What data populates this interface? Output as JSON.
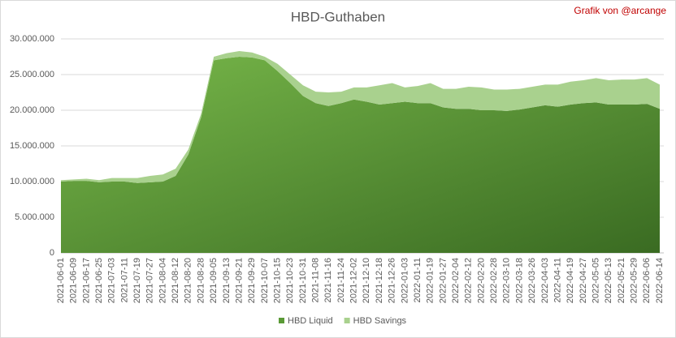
{
  "chart_data": {
    "type": "stacked-area",
    "title": "HBD-Guthaben",
    "annotation": "Grafik von @arcange",
    "categories": [
      "2021-06-01",
      "2021-06-09",
      "2021-06-17",
      "2021-06-25",
      "2021-07-03",
      "2021-07-11",
      "2021-07-19",
      "2021-07-27",
      "2021-08-04",
      "2021-08-12",
      "2021-08-20",
      "2021-08-28",
      "2021-09-05",
      "2021-09-13",
      "2021-09-21",
      "2021-09-29",
      "2021-10-07",
      "2021-10-15",
      "2021-10-23",
      "2021-10-31",
      "2021-11-08",
      "2021-11-16",
      "2021-11-24",
      "2021-12-02",
      "2021-12-10",
      "2021-12-18",
      "2021-12-26",
      "2022-01-03",
      "2022-01-11",
      "2022-01-19",
      "2022-01-27",
      "2022-02-04",
      "2022-02-12",
      "2022-02-20",
      "2022-02-28",
      "2022-03-10",
      "2022-03-18",
      "2022-03-26",
      "2022-04-03",
      "2022-04-11",
      "2022-04-19",
      "2022-04-27",
      "2022-05-05",
      "2022-05-13",
      "2022-05-21",
      "2022-05-29",
      "2022-06-06",
      "2022-06-14"
    ],
    "series": [
      {
        "name": "HBD Liquid",
        "color": "#5a9a36",
        "values": [
          10000000,
          10100000,
          10100000,
          9900000,
          10000000,
          10000000,
          9800000,
          9900000,
          10000000,
          10800000,
          13800000,
          19000000,
          27000000,
          27300000,
          27500000,
          27400000,
          27000000,
          25500000,
          23800000,
          22000000,
          21000000,
          20600000,
          21000000,
          21500000,
          21200000,
          20800000,
          21000000,
          21200000,
          21000000,
          21000000,
          20400000,
          20200000,
          20200000,
          20000000,
          20000000,
          19900000,
          20100000,
          20400000,
          20700000,
          20500000,
          20800000,
          21000000,
          21100000,
          20800000,
          20800000,
          20800000,
          20900000,
          20200000
        ]
      },
      {
        "name": "HBD Savings",
        "color": "#a9d18e",
        "values": [
          200000,
          200000,
          300000,
          300000,
          500000,
          500000,
          700000,
          900000,
          1000000,
          1000000,
          700000,
          500000,
          500000,
          700000,
          800000,
          700000,
          500000,
          1000000,
          1200000,
          1500000,
          1600000,
          1900000,
          1600000,
          1700000,
          2000000,
          2700000,
          2800000,
          2000000,
          2400000,
          2800000,
          2600000,
          2800000,
          3100000,
          3200000,
          2900000,
          3000000,
          2900000,
          2900000,
          2900000,
          3100000,
          3200000,
          3200000,
          3400000,
          3400000,
          3500000,
          3500000,
          3600000,
          3400000
        ]
      }
    ],
    "ylim": [
      0,
      30000000
    ],
    "yticks": [
      0,
      {
        "value": 5000000,
        "label": "5.000.000"
      },
      {
        "value": 10000000,
        "label": "10.000.000"
      },
      {
        "value": 15000000,
        "label": "15.000.000"
      },
      {
        "value": 20000000,
        "label": "20.000.000"
      },
      {
        "value": 25000000,
        "label": "25.000.000"
      },
      {
        "value": 30000000,
        "label": "30.000.000"
      }
    ],
    "grid": true,
    "legend": "bottom"
  }
}
